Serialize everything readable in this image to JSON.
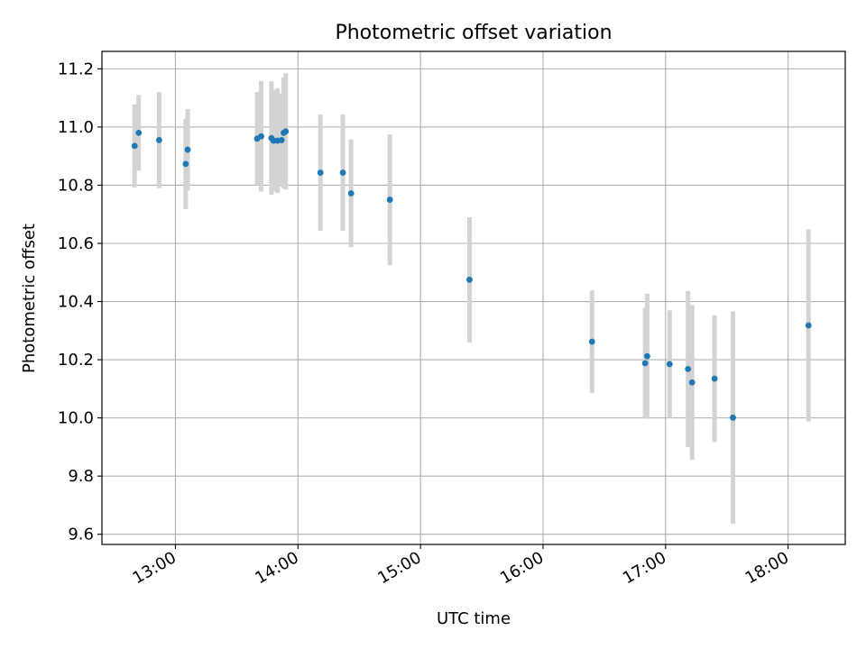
{
  "chart_data": {
    "type": "scatter",
    "title": "Photometric offset variation",
    "xlabel": "UTC time",
    "ylabel": "Photometric offset",
    "x_unit": "UTC",
    "xlim": [
      "12:24",
      "18:28"
    ],
    "ylim": [
      9.565,
      11.26
    ],
    "x_ticks": [
      "13:00",
      "14:00",
      "15:00",
      "16:00",
      "17:00",
      "18:00"
    ],
    "y_ticks": [
      "9.6",
      "9.8",
      "10.0",
      "10.2",
      "10.4",
      "10.6",
      "10.8",
      "11.0",
      "11.2"
    ],
    "grid": true,
    "colors": {
      "points": "#1f77b4",
      "errorbars": "#d3d3d3",
      "grid": "#b0b0b0"
    },
    "points": [
      {
        "x": "12:40",
        "y": 10.935,
        "err": 0.143
      },
      {
        "x": "12:42",
        "y": 10.98,
        "err": 0.13
      },
      {
        "x": "12:52",
        "y": 10.955,
        "err": 0.165
      },
      {
        "x": "13:05",
        "y": 10.873,
        "err": 0.155
      },
      {
        "x": "13:06",
        "y": 10.922,
        "err": 0.14
      },
      {
        "x": "13:40",
        "y": 10.96,
        "err": 0.16
      },
      {
        "x": "13:42",
        "y": 10.968,
        "err": 0.19
      },
      {
        "x": "13:47",
        "y": 10.962,
        "err": 0.195
      },
      {
        "x": "13:48",
        "y": 10.953,
        "err": 0.175
      },
      {
        "x": "13:50",
        "y": 10.953,
        "err": 0.18
      },
      {
        "x": "13:52",
        "y": 10.955,
        "err": 0.16
      },
      {
        "x": "13:53",
        "y": 10.98,
        "err": 0.19
      },
      {
        "x": "13:54",
        "y": 10.985,
        "err": 0.2
      },
      {
        "x": "14:11",
        "y": 10.843,
        "err": 0.2
      },
      {
        "x": "14:22",
        "y": 10.843,
        "err": 0.2
      },
      {
        "x": "14:26",
        "y": 10.772,
        "err": 0.185
      },
      {
        "x": "14:45",
        "y": 10.75,
        "err": 0.225
      },
      {
        "x": "15:24",
        "y": 10.475,
        "err": 0.215
      },
      {
        "x": "16:24",
        "y": 10.262,
        "err": 0.176
      },
      {
        "x": "16:50",
        "y": 10.188,
        "err": 0.19
      },
      {
        "x": "16:51",
        "y": 10.212,
        "err": 0.215
      },
      {
        "x": "17:02",
        "y": 10.185,
        "err": 0.185
      },
      {
        "x": "17:11",
        "y": 10.168,
        "err": 0.268
      },
      {
        "x": "17:13",
        "y": 10.122,
        "err": 0.266
      },
      {
        "x": "17:24",
        "y": 10.135,
        "err": 0.218
      },
      {
        "x": "17:33",
        "y": 10.001,
        "err": 0.365
      },
      {
        "x": "18:10",
        "y": 10.318,
        "err": 0.33
      }
    ]
  }
}
